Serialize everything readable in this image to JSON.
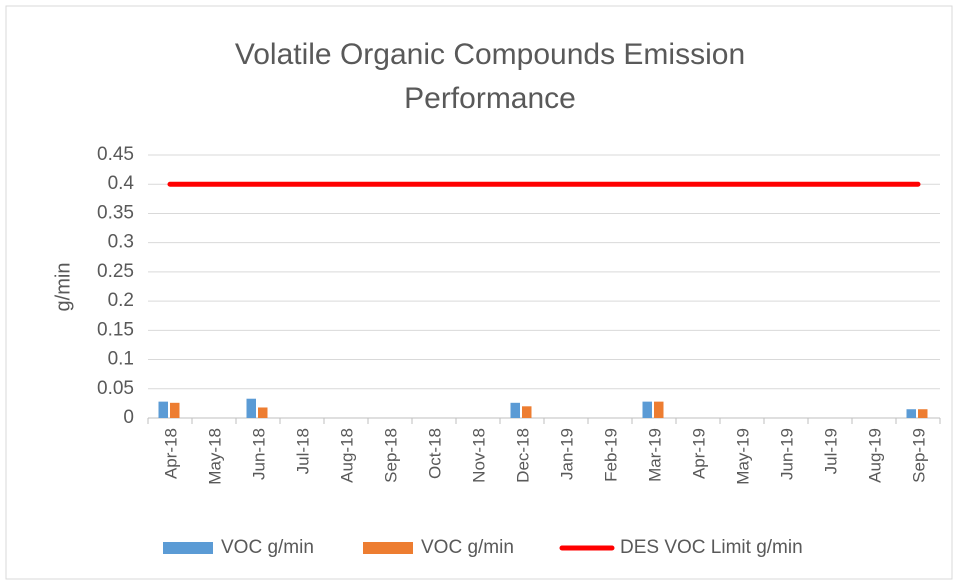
{
  "chart_data": {
    "type": "bar",
    "title": [
      "Volatile Organic Compounds Emission",
      "Performance"
    ],
    "y_label": "g/min",
    "categories": [
      "Apr-18",
      "May-18",
      "Jun-18",
      "Jul-18",
      "Aug-18",
      "Sep-18",
      "Oct-18",
      "Nov-18",
      "Dec-18",
      "Jan-19",
      "Feb-19",
      "Mar-19",
      "Apr-19",
      "May-19",
      "Jun-19",
      "Jul-19",
      "Aug-19",
      "Sep-19"
    ],
    "series": [
      {
        "name": "VOC g/min",
        "type": "bar",
        "color": "#5b9bd5",
        "values": [
          0.028,
          null,
          0.033,
          null,
          null,
          null,
          null,
          null,
          0.026,
          null,
          null,
          0.028,
          null,
          null,
          null,
          null,
          null,
          0.015
        ]
      },
      {
        "name": "VOC g/min",
        "type": "bar",
        "color": "#ed7d31",
        "values": [
          0.026,
          null,
          0.018,
          null,
          null,
          null,
          null,
          null,
          0.02,
          null,
          null,
          0.028,
          null,
          null,
          null,
          null,
          null,
          0.015
        ]
      },
      {
        "name": "DES VOC Limit g/min",
        "type": "line",
        "color": "#ff0000",
        "values": [
          0.4,
          0.4,
          0.4,
          0.4,
          0.4,
          0.4,
          0.4,
          0.4,
          0.4,
          0.4,
          0.4,
          0.4,
          0.4,
          0.4,
          0.4,
          0.4,
          0.4,
          0.4
        ]
      }
    ],
    "ylim": [
      0,
      0.45
    ],
    "yticks": [
      0,
      0.05,
      0.1,
      0.15,
      0.2,
      0.25,
      0.3,
      0.35,
      0.4,
      0.45
    ],
    "grid": true,
    "legend": "bottom"
  }
}
